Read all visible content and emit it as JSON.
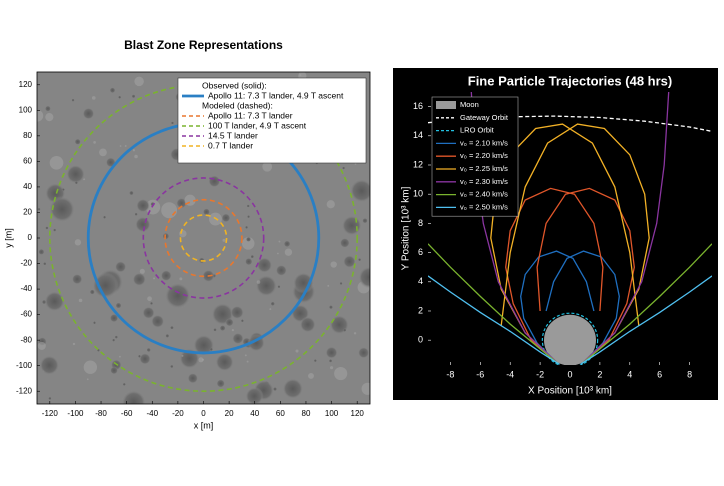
{
  "chart_data": [
    {
      "type": "circle",
      "title": "Blast Zone Representations",
      "xlabel": "x [m]",
      "ylabel": "y [m]",
      "xlim": [
        -130,
        130
      ],
      "ylim": [
        -130,
        130
      ],
      "xticks": [
        -120,
        -100,
        -80,
        -60,
        -40,
        -20,
        0,
        20,
        40,
        60,
        80,
        100,
        120
      ],
      "yticks": [
        -120,
        -100,
        -80,
        -60,
        -40,
        -20,
        0,
        20,
        40,
        60,
        80,
        100,
        120
      ],
      "groups": [
        {
          "heading": "Observed (solid):",
          "series": [
            {
              "name": "Apollo 11: 7.3 T lander, 4.9 T ascent",
              "color": "#2a7fc4",
              "dash": false,
              "radius": 90
            }
          ]
        },
        {
          "heading": "Modeled (dashed):",
          "series": [
            {
              "name": "Apollo 11: 7.3 T lander",
              "color": "#e8772e",
              "dash": true,
              "radius": 30
            },
            {
              "name": "100 T lander, 4.9 T ascent",
              "color": "#7ab32e",
              "dash": true,
              "radius": 120
            },
            {
              "name": "14.5 T lander",
              "color": "#8a35a0",
              "dash": true,
              "radius": 47
            },
            {
              "name": "0.7 T lander",
              "color": "#f0b323",
              "dash": true,
              "radius": 18
            }
          ]
        }
      ]
    },
    {
      "type": "line",
      "title": "Fine Particle Trajectories (48 hrs)",
      "xlabel": "X Position [10³ km]",
      "ylabel": "Y Position [10³ km]",
      "xlim": [
        -9.5,
        9.5
      ],
      "ylim": [
        -1.7,
        17
      ],
      "xticks": [
        -8,
        -6,
        -4,
        -2,
        0,
        2,
        4,
        6,
        8
      ],
      "yticks": [
        0,
        2,
        4,
        6,
        8,
        10,
        12,
        14,
        16
      ],
      "series": [
        {
          "name": "Moon",
          "color": "#9a9a9a",
          "fill": true,
          "radius": 1.74
        },
        {
          "name": "Gateway Orbit",
          "color": "#ffffff",
          "dash": true,
          "x": [
            -9.5,
            -7,
            -4,
            -1,
            2,
            5,
            8,
            9.5
          ],
          "values": [
            14.9,
            15.15,
            15.3,
            15.35,
            15.25,
            15.0,
            14.6,
            14.3
          ]
        },
        {
          "name": "LRO Orbit",
          "color": "#22c0e0",
          "dash": true,
          "radius": 1.85
        },
        {
          "name": "v₀ = 2.10 km/s",
          "color": "#1f6fc0",
          "x": [
            -0.9,
            -2.2,
            -3.1,
            -3.3,
            -3.0,
            -2.1,
            -0.9,
            0.2,
            1.1,
            1.6,
            null,
            0.9,
            2.2,
            3.1,
            3.3,
            3.0,
            2.1,
            0.9,
            -0.2,
            -1.1,
            -1.6
          ],
          "values": [
            -1.5,
            -0.2,
            1.5,
            3.0,
            4.5,
            5.7,
            6.1,
            5.6,
            4.0,
            2.0,
            null,
            -1.5,
            -0.2,
            1.5,
            3.0,
            4.5,
            5.7,
            6.1,
            5.6,
            4.0,
            2.0
          ]
        },
        {
          "name": "v₀ = 2.20 km/s",
          "color": "#e0562a",
          "x": [
            -0.9,
            -2.6,
            -3.8,
            -4.3,
            -4.0,
            -3.0,
            -1.3,
            0.3,
            1.6,
            2.2,
            2.0,
            null,
            0.9,
            2.6,
            3.8,
            4.3,
            4.0,
            3.0,
            1.3,
            -0.3,
            -1.6,
            -2.2,
            -2.0
          ],
          "values": [
            -1.5,
            0,
            2.5,
            5,
            7.5,
            9.6,
            10.4,
            10.0,
            8.0,
            5.0,
            2.0,
            null,
            -1.5,
            0,
            2.5,
            5,
            7.5,
            9.6,
            10.4,
            10.0,
            8.0,
            5.0,
            2.0
          ]
        },
        {
          "name": "v₀ = 2.25 km/s",
          "color": "#f2b126",
          "x": [
            -0.9,
            -3,
            -4.6,
            -5.3,
            -5.0,
            -4.0,
            -2.3,
            -0.5,
            1.5,
            3.0,
            4.0,
            4.6,
            null,
            0.9,
            3,
            4.6,
            5.3,
            5.0,
            4.0,
            2.3,
            0.5,
            -1.5,
            -3.0,
            -4.0,
            -4.6
          ],
          "values": [
            -1.5,
            0.5,
            3.5,
            7,
            10,
            12.7,
            14.5,
            14.8,
            13.5,
            10.5,
            6,
            1,
            null,
            -1.5,
            0.5,
            3.5,
            7,
            10,
            12.7,
            14.5,
            14.8,
            13.5,
            10.5,
            6,
            1
          ]
        },
        {
          "name": "v₀ = 2.30 km/s",
          "color": "#8a35a0",
          "x": [
            -0.9,
            -3,
            -4.8,
            -5.8,
            -6.3,
            -6.6,
            null,
            0.9,
            3,
            4.8,
            5.8,
            6.3,
            6.6
          ],
          "values": [
            -1.5,
            0.5,
            4,
            8,
            12,
            17,
            null,
            -1.5,
            0.5,
            4,
            8,
            12,
            17
          ]
        },
        {
          "name": "v₀ = 2.40 km/s",
          "color": "#7ab32e",
          "x": [
            -0.8,
            -2,
            -4,
            -6,
            -8,
            -9.5,
            null,
            0.8,
            2,
            4,
            6,
            8,
            9.5
          ],
          "values": [
            -1.6,
            -0.6,
            1.1,
            3.0,
            5.0,
            6.6,
            null,
            -1.6,
            -0.6,
            1.1,
            3.0,
            5.0,
            6.6
          ]
        },
        {
          "name": "v₀ = 2.50 km/s",
          "color": "#50c0f0",
          "x": [
            -0.7,
            -2,
            -4,
            -6,
            -8,
            -9.5,
            null,
            0.7,
            2,
            4,
            6,
            8,
            9.5
          ],
          "values": [
            -1.65,
            -0.8,
            0.6,
            1.9,
            3.3,
            4.4,
            null,
            -1.65,
            -0.8,
            0.6,
            1.9,
            3.3,
            4.4
          ]
        }
      ]
    }
  ]
}
